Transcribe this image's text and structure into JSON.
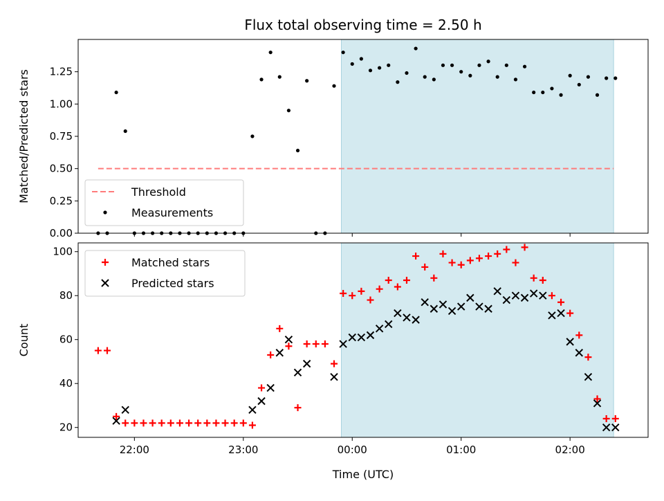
{
  "title": "Flux total observing time = 2.50 h",
  "colors": {
    "shade": "#d4eaf0",
    "shade_edge": "#a9d3df",
    "threshold": "#ff7b7b",
    "measurement": "#000000",
    "matched": "#ff0000",
    "predicted": "#000000"
  },
  "chart_data": [
    {
      "type": "scatter",
      "ylabel": "Matched/Predicted stars",
      "ylim": [
        0,
        1.5
      ],
      "yticks": [
        0.0,
        0.25,
        0.5,
        0.75,
        1.0,
        1.25
      ],
      "ytick_labels": [
        "0.00",
        "0.25",
        "0.50",
        "0.75",
        "1.00",
        "1.25"
      ],
      "xlim": [
        "21:29",
        "02:43"
      ],
      "xticks": [
        "22:00",
        "23:00",
        "00:00",
        "01:00",
        "02:00"
      ],
      "grid": false,
      "legend": "bottom-left",
      "shaded_region": {
        "from": "23:54",
        "to": "02:24"
      },
      "threshold": {
        "name": "Threshold",
        "value": 0.5,
        "from": "21:40",
        "to": "02:24"
      },
      "series": [
        {
          "name": "Measurements",
          "x": [
            "21:40",
            "21:45",
            "21:50",
            "21:55",
            "22:00",
            "22:05",
            "22:10",
            "22:15",
            "22:20",
            "22:25",
            "22:30",
            "22:35",
            "22:40",
            "22:45",
            "22:50",
            "22:55",
            "23:00",
            "23:05",
            "23:10",
            "23:15",
            "23:20",
            "23:25",
            "23:30",
            "23:35",
            "23:40",
            "23:45",
            "23:50",
            "23:55",
            "00:00",
            "00:05",
            "00:10",
            "00:15",
            "00:20",
            "00:25",
            "00:30",
            "00:35",
            "00:40",
            "00:45",
            "00:50",
            "00:55",
            "01:00",
            "01:05",
            "01:10",
            "01:15",
            "01:20",
            "01:25",
            "01:30",
            "01:35",
            "01:40",
            "01:45",
            "01:50",
            "01:55",
            "02:00",
            "02:05",
            "02:10",
            "02:15",
            "02:20",
            "02:25"
          ],
          "y": [
            0,
            0,
            1.09,
            0.79,
            0,
            0,
            0,
            0,
            0,
            0,
            0,
            0,
            0,
            0,
            0,
            0,
            0,
            0.75,
            1.19,
            1.4,
            1.21,
            0.95,
            0.64,
            1.18,
            0,
            0,
            1.14,
            1.4,
            1.31,
            1.35,
            1.26,
            1.28,
            1.3,
            1.17,
            1.24,
            1.43,
            1.21,
            1.19,
            1.3,
            1.3,
            1.25,
            1.22,
            1.3,
            1.33,
            1.21,
            1.3,
            1.19,
            1.29,
            1.09,
            1.09,
            1.12,
            1.07,
            1.22,
            1.15,
            1.21,
            1.07,
            1.2,
            1.2
          ]
        }
      ]
    },
    {
      "type": "scatter",
      "ylabel": "Count",
      "xlabel": "Time (UTC)",
      "ylim": [
        15.5,
        104
      ],
      "yticks": [
        20,
        40,
        60,
        80,
        100
      ],
      "ytick_labels": [
        "20",
        "40",
        "60",
        "80",
        "100"
      ],
      "xlim": [
        "21:29",
        "02:43"
      ],
      "xticks": [
        "22:00",
        "23:00",
        "00:00",
        "01:00",
        "02:00"
      ],
      "grid": false,
      "legend": "top-left",
      "shaded_region": {
        "from": "23:54",
        "to": "02:24"
      },
      "series": [
        {
          "name": "Matched stars",
          "marker": "plus",
          "x": [
            "21:40",
            "21:45",
            "21:50",
            "21:55",
            "22:00",
            "22:05",
            "22:10",
            "22:15",
            "22:20",
            "22:25",
            "22:30",
            "22:35",
            "22:40",
            "22:45",
            "22:50",
            "22:55",
            "23:00",
            "23:05",
            "23:10",
            "23:15",
            "23:20",
            "23:25",
            "23:30",
            "23:35",
            "23:40",
            "23:45",
            "23:50",
            "23:55",
            "00:00",
            "00:05",
            "00:10",
            "00:15",
            "00:20",
            "00:25",
            "00:30",
            "00:35",
            "00:40",
            "00:45",
            "00:50",
            "00:55",
            "01:00",
            "01:05",
            "01:10",
            "01:15",
            "01:20",
            "01:25",
            "01:30",
            "01:35",
            "01:40",
            "01:45",
            "01:50",
            "01:55",
            "02:00",
            "02:05",
            "02:10",
            "02:15",
            "02:20",
            "02:25"
          ],
          "y": [
            55,
            55,
            25,
            22,
            22,
            22,
            22,
            22,
            22,
            22,
            22,
            22,
            22,
            22,
            22,
            22,
            22,
            21,
            38,
            53,
            65,
            57,
            29,
            58,
            58,
            58,
            49,
            81,
            80,
            82,
            78,
            83,
            87,
            84,
            87,
            98,
            93,
            88,
            99,
            95,
            94,
            96,
            97,
            98,
            99,
            101,
            95,
            102,
            88,
            87,
            80,
            77,
            72,
            62,
            52,
            33,
            24,
            24
          ]
        },
        {
          "name": "Predicted stars",
          "marker": "x",
          "x": [
            "21:50",
            "21:55",
            "23:05",
            "23:10",
            "23:15",
            "23:20",
            "23:25",
            "23:30",
            "23:35",
            "23:50",
            "23:55",
            "00:00",
            "00:05",
            "00:10",
            "00:15",
            "00:20",
            "00:25",
            "00:30",
            "00:35",
            "00:40",
            "00:45",
            "00:50",
            "00:55",
            "01:00",
            "01:05",
            "01:10",
            "01:15",
            "01:20",
            "01:25",
            "01:30",
            "01:35",
            "01:40",
            "01:45",
            "01:50",
            "01:55",
            "02:00",
            "02:05",
            "02:10",
            "02:15",
            "02:20",
            "02:25"
          ],
          "y": [
            23,
            28,
            28,
            32,
            38,
            54,
            60,
            45,
            49,
            43,
            58,
            61,
            61,
            62,
            65,
            67,
            72,
            70,
            69,
            77,
            74,
            76,
            73,
            75,
            79,
            75,
            74,
            82,
            78,
            80,
            79,
            81,
            80,
            71,
            72,
            59,
            54,
            43,
            31,
            20,
            20
          ]
        }
      ]
    }
  ]
}
